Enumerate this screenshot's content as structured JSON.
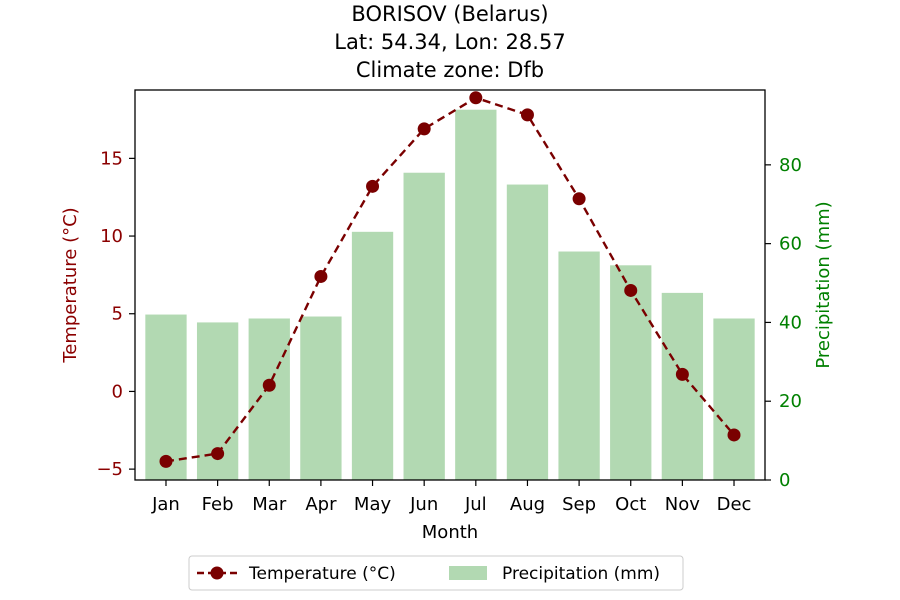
{
  "chart_data": {
    "type": "bar+line",
    "title": "BORISOV (Belarus)",
    "subtitle_lines": [
      "Lat: 54.34, Lon: 28.57",
      "Climate zone: Dfb"
    ],
    "xlabel": "Month",
    "categories": [
      "Jan",
      "Feb",
      "Mar",
      "Apr",
      "May",
      "Jun",
      "Jul",
      "Aug",
      "Sep",
      "Oct",
      "Nov",
      "Dec"
    ],
    "y_left": {
      "label": "Temperature (°C)",
      "range": [
        -5.7,
        19.4
      ],
      "ticks": [
        -5,
        0,
        5,
        10,
        15
      ],
      "tick_labels": [
        "−5",
        "0",
        "5",
        "10",
        "15"
      ],
      "color": "#8b0000"
    },
    "y_right": {
      "label": "Precipitation (mm)",
      "range": [
        0,
        99
      ],
      "ticks": [
        0,
        20,
        40,
        60,
        80
      ],
      "tick_labels": [
        "0",
        "20",
        "40",
        "60",
        "80"
      ],
      "color": "#008000"
    },
    "series": [
      {
        "name": "Temperature (°C)",
        "kind": "line",
        "axis": "left",
        "color": "#7a0000",
        "values": [
          -4.5,
          -4.0,
          0.4,
          7.4,
          13.2,
          16.9,
          18.9,
          17.8,
          12.4,
          6.5,
          1.1,
          -2.8
        ]
      },
      {
        "name": "Precipitation (mm)",
        "kind": "bar",
        "axis": "right",
        "color": "#b2d9b2",
        "values": [
          42,
          40,
          41,
          41.5,
          63,
          78,
          94,
          75,
          58,
          54.5,
          47.5,
          41
        ]
      }
    ],
    "legend": {
      "placement": "bottom-center",
      "entries": [
        "Temperature (°C)",
        "Precipitation (mm)"
      ]
    },
    "grid": false
  }
}
